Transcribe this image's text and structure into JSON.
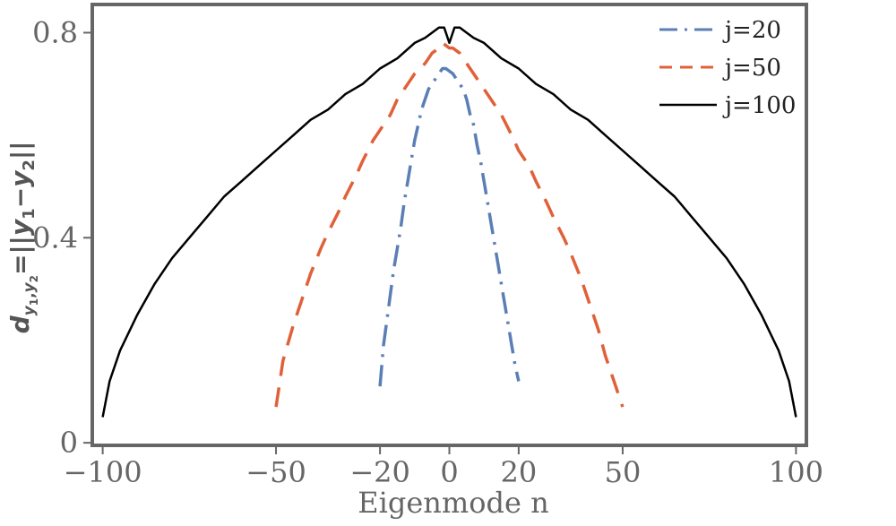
{
  "chart_data": {
    "type": "line",
    "title": "",
    "xlabel": "Eigenmode n",
    "ylabel": "d_{y1,y2}=||y1−y2||",
    "ylabel_parts": {
      "d": "d",
      "sub_y1": "y",
      "sub_1": "1",
      "comma": ",",
      "sub_y2": "y",
      "sub_2": "2",
      "rest_a": "=||",
      "y1": "y",
      "n1": "1",
      "minus": "−",
      "y2": "y",
      "n2": "2",
      "rest_b": "||"
    },
    "xlim": [
      -103,
      103
    ],
    "ylim": [
      -0.005,
      0.855
    ],
    "x_ticks": [
      -100,
      -50,
      -20,
      0,
      20,
      50,
      100
    ],
    "x_tick_labels": [
      "−100",
      "−50",
      "−20",
      "0",
      "20",
      "50",
      "100"
    ],
    "y_ticks": [
      0,
      0.4,
      0.8
    ],
    "y_tick_labels": [
      "0",
      "0.4",
      "0.8"
    ],
    "grid": false,
    "legend_position": "top-right",
    "colors": {
      "frame": "#666666",
      "j20": "#5b7fb5",
      "j50": "#e06139",
      "j100": "#000000"
    },
    "series": [
      {
        "name": "j=20",
        "style": "dashdot",
        "color": "#5b7fb5",
        "x": [
          -20,
          -19,
          -18,
          -17,
          -16,
          -15,
          -14,
          -13,
          -12,
          -11,
          -10,
          -9,
          -8,
          -7,
          -6,
          -5,
          -4,
          -3,
          -2,
          -1,
          0,
          1,
          2,
          3,
          4,
          5,
          6,
          7,
          8,
          9,
          10,
          11,
          12,
          13,
          14,
          15,
          16,
          17,
          18,
          19,
          20
        ],
        "y": [
          0.11,
          0.19,
          0.24,
          0.29,
          0.34,
          0.38,
          0.42,
          0.47,
          0.51,
          0.55,
          0.59,
          0.62,
          0.65,
          0.67,
          0.69,
          0.7,
          0.71,
          0.72,
          0.73,
          0.73,
          0.725,
          0.72,
          0.71,
          0.7,
          0.69,
          0.67,
          0.64,
          0.62,
          0.58,
          0.55,
          0.51,
          0.47,
          0.43,
          0.39,
          0.35,
          0.31,
          0.27,
          0.23,
          0.19,
          0.15,
          0.12
        ]
      },
      {
        "name": "j=50",
        "style": "dashed",
        "color": "#e06139",
        "x": [
          -50,
          -48,
          -45,
          -42,
          -40,
          -37,
          -35,
          -32,
          -30,
          -27,
          -25,
          -22,
          -20,
          -17,
          -15,
          -12,
          -10,
          -7,
          -5,
          -3,
          -2,
          0,
          1,
          3,
          5,
          8,
          10,
          13,
          15,
          18,
          20,
          23,
          25,
          28,
          30,
          33,
          35,
          38,
          40,
          43,
          45,
          48,
          50
        ],
        "y": [
          0.07,
          0.16,
          0.23,
          0.29,
          0.33,
          0.38,
          0.41,
          0.45,
          0.48,
          0.52,
          0.55,
          0.59,
          0.61,
          0.64,
          0.67,
          0.7,
          0.72,
          0.74,
          0.76,
          0.77,
          0.78,
          0.77,
          0.77,
          0.76,
          0.74,
          0.71,
          0.69,
          0.66,
          0.64,
          0.6,
          0.57,
          0.54,
          0.51,
          0.47,
          0.44,
          0.4,
          0.37,
          0.32,
          0.28,
          0.22,
          0.17,
          0.11,
          0.07
        ]
      },
      {
        "name": "j=100",
        "style": "solid",
        "color": "#000000",
        "x": [
          -100,
          -98,
          -95,
          -90,
          -85,
          -80,
          -75,
          -70,
          -65,
          -60,
          -55,
          -50,
          -45,
          -40,
          -35,
          -30,
          -25,
          -20,
          -15,
          -10,
          -7,
          -5,
          -3,
          -1.5,
          0,
          1.5,
          3,
          5,
          7,
          10,
          15,
          20,
          25,
          30,
          35,
          40,
          45,
          50,
          55,
          60,
          65,
          70,
          75,
          80,
          85,
          90,
          95,
          98,
          100
        ],
        "y": [
          0.05,
          0.12,
          0.18,
          0.25,
          0.31,
          0.36,
          0.4,
          0.44,
          0.48,
          0.51,
          0.54,
          0.57,
          0.6,
          0.63,
          0.65,
          0.68,
          0.7,
          0.73,
          0.75,
          0.78,
          0.79,
          0.8,
          0.81,
          0.81,
          0.78,
          0.81,
          0.81,
          0.8,
          0.79,
          0.78,
          0.75,
          0.73,
          0.7,
          0.68,
          0.65,
          0.63,
          0.6,
          0.57,
          0.54,
          0.51,
          0.48,
          0.44,
          0.4,
          0.36,
          0.31,
          0.25,
          0.18,
          0.12,
          0.05
        ]
      }
    ]
  }
}
